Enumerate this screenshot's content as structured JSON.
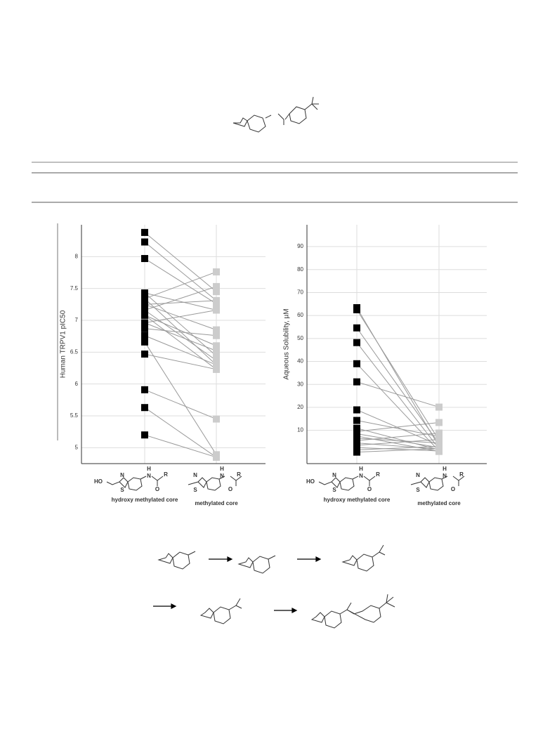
{
  "chart_data": [
    {
      "type": "paired_dot",
      "ylabel": "Human TRPV1 pIC50",
      "categories": [
        "hydroxy methylated core",
        "methylated core"
      ],
      "ylim": [
        4.75,
        8.5
      ],
      "yticks": [
        5,
        5.5,
        6,
        6.5,
        7,
        7.5,
        8
      ],
      "grid": true,
      "marker_colors": [
        "#000000",
        "#cccccc"
      ],
      "line_color": "#999999",
      "series": [
        {
          "values": [
            8.38,
            7.45
          ]
        },
        {
          "values": [
            8.23,
            7.31
          ]
        },
        {
          "values": [
            7.97,
            7.26
          ]
        },
        {
          "values": [
            7.43,
            6.44
          ]
        },
        {
          "values": [
            7.43,
            7.16
          ]
        },
        {
          "values": [
            7.34,
            7.76
          ]
        },
        {
          "values": [
            7.34,
            6.3
          ]
        },
        {
          "values": [
            7.25,
            7.31
          ]
        },
        {
          "values": [
            7.25,
            6.85
          ]
        },
        {
          "values": [
            7.16,
            6.37
          ]
        },
        {
          "values": [
            7.08,
            6.6
          ]
        },
        {
          "values": [
            7.08,
            6.23
          ]
        },
        {
          "values": [
            6.96,
            7.16
          ]
        },
        {
          "values": [
            6.96,
            6.52
          ]
        },
        {
          "values": [
            6.87,
            6.76
          ]
        },
        {
          "values": [
            6.76,
            6.3
          ]
        },
        {
          "values": [
            6.66,
            4.89
          ]
        },
        {
          "values": [
            6.47,
            6.23
          ]
        },
        {
          "values": [
            5.91,
            5.45
          ]
        },
        {
          "values": [
            5.63,
            4.85
          ]
        },
        {
          "values": [
            5.2,
            4.85
          ]
        },
        {
          "values": [
            7.16,
            7.53
          ]
        }
      ]
    },
    {
      "type": "paired_dot",
      "ylabel": "Aqueous Solubility, µM",
      "categories": [
        "hydroxy methylated core",
        "methylated core"
      ],
      "ylim": [
        -4.5,
        99.5
      ],
      "yticks": [
        10,
        20,
        30,
        40,
        50,
        60,
        70,
        80,
        90
      ],
      "grid": true,
      "marker_colors": [
        "#000000",
        "#cccccc"
      ],
      "line_color": "#999999",
      "series": [
        {
          "values": [
            63.4,
            3.0
          ]
        },
        {
          "values": [
            62.5,
            5.7
          ]
        },
        {
          "values": [
            54.6,
            4.2
          ]
        },
        {
          "values": [
            48.2,
            2.0
          ]
        },
        {
          "values": [
            39.0,
            1.0
          ]
        },
        {
          "values": [
            31.1,
            20.1
          ]
        },
        {
          "values": [
            18.9,
            3.5
          ]
        },
        {
          "values": [
            14.3,
            7.3
          ]
        },
        {
          "values": [
            10.9,
            1.5
          ]
        },
        {
          "values": [
            9.5,
            13.4
          ]
        },
        {
          "values": [
            8.5,
            2.5
          ]
        },
        {
          "values": [
            7.5,
            0.8
          ]
        },
        {
          "values": [
            6.5,
            4.5
          ]
        },
        {
          "values": [
            5.5,
            8.8
          ]
        },
        {
          "values": [
            4.5,
            1.8
          ]
        },
        {
          "values": [
            3.5,
            6.0
          ]
        },
        {
          "values": [
            2.5,
            1.0
          ]
        },
        {
          "values": [
            1.5,
            3.0
          ]
        },
        {
          "values": [
            0.5,
            2.0
          ]
        }
      ]
    }
  ],
  "core_structures": [
    {
      "atoms": [
        "HO",
        "N",
        "S",
        "H",
        "N",
        "R",
        "O"
      ]
    },
    {
      "atoms": [
        "N",
        "S",
        "H",
        "N",
        "R",
        "O"
      ]
    }
  ]
}
